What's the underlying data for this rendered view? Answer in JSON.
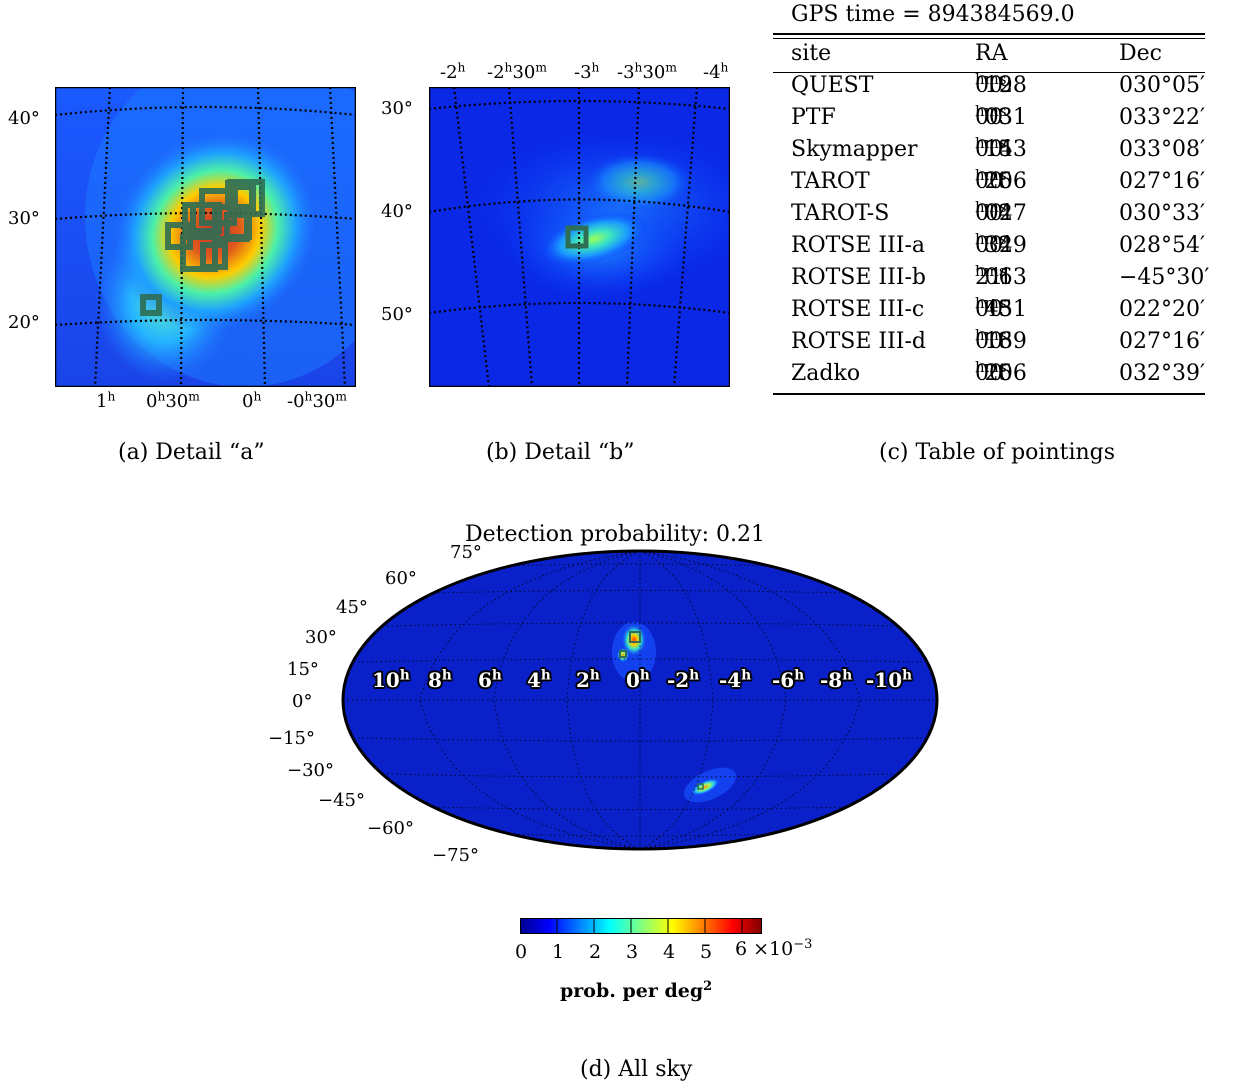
{
  "panel_a": {
    "caption": "(a) Detail “a”",
    "dec_labels": [
      "40°",
      "30°",
      "20°"
    ],
    "ra_labels": [
      "1",
      "0",
      "0",
      "-0"
    ],
    "ra_sup": [
      "h",
      "h",
      "h",
      "h"
    ],
    "ra_suffix": [
      "",
      "30",
      "",
      "30"
    ],
    "ra_suffix_sup": [
      "",
      "m",
      "",
      "m"
    ]
  },
  "panel_b": {
    "caption": "(b) Detail “b”",
    "dec_labels": [
      "30°",
      "40°",
      "50°"
    ],
    "ra_labels": [
      "-2",
      "-2",
      "-3",
      "-3",
      "-4"
    ],
    "ra_sup": [
      "h",
      "h",
      "h",
      "h",
      "h"
    ],
    "ra_suffix": [
      "",
      "30",
      "",
      "30",
      ""
    ],
    "ra_suffix_sup": [
      "",
      "m",
      "",
      "m",
      ""
    ]
  },
  "panel_c": {
    "caption": "(c) Table of pointings",
    "gps_time": "GPS time = 894384569.0",
    "headers": [
      "site",
      "RA",
      "Dec"
    ],
    "rows": [
      {
        "site": "QUEST",
        "ra": [
          "00",
          "h",
          "19",
          "m",
          "28",
          "s"
        ],
        "dec": "030°05′"
      },
      {
        "site": "PTF",
        "ra": [
          "00",
          "h",
          "03",
          "m",
          "31",
          "s"
        ],
        "dec": "033°22′"
      },
      {
        "site": "Skymapper",
        "ra": [
          "00",
          "h",
          "15",
          "m",
          "43",
          "s"
        ],
        "dec": "033°08′"
      },
      {
        "site": "TAROT",
        "ra": [
          "00",
          "h",
          "25",
          "m",
          "06",
          "s"
        ],
        "dec": "027°16′"
      },
      {
        "site": "TAROT-S",
        "ra": [
          "00",
          "h",
          "04",
          "m",
          "27",
          "s"
        ],
        "dec": "030°33′"
      },
      {
        "site": "ROTSE III-a",
        "ra": [
          "00",
          "h",
          "34",
          "m",
          "29",
          "s"
        ],
        "dec": "028°54′"
      },
      {
        "site": "ROTSE III-b",
        "ra": [
          "21",
          "h",
          "06",
          "m",
          "13",
          "s"
        ],
        "dec": "−45°30′"
      },
      {
        "site": "ROTSE III-c",
        "ra": [
          "00",
          "h",
          "43",
          "m",
          "51",
          "s"
        ],
        "dec": "022°20′"
      },
      {
        "site": "ROTSE III-d",
        "ra": [
          "00",
          "h",
          "16",
          "m",
          "39",
          "s"
        ],
        "dec": "027°16′"
      },
      {
        "site": "Zadko",
        "ra": [
          "00",
          "h",
          "25",
          "m",
          "06",
          "s"
        ],
        "dec": "032°39′"
      }
    ]
  },
  "panel_d": {
    "caption": "(d) All sky",
    "title": "Detection probability: 0.21",
    "dec_labels": [
      "75°",
      "60°",
      "45°",
      "30°",
      "15°",
      "0°",
      "−15°",
      "−30°",
      "−45°",
      "−60°",
      "−75°"
    ],
    "ra_labels": [
      "10",
      "8",
      "6",
      "4",
      "2",
      "0",
      "-2",
      "-4",
      "-6",
      "-8",
      "-10"
    ],
    "ra_sup": "h",
    "colorbar": {
      "ticks": [
        "0",
        "1",
        "2",
        "3",
        "4",
        "5",
        "6"
      ],
      "multiplier": "×10",
      "multiplier_exp": "−3",
      "label": "prob. per deg",
      "label_exp": "2"
    }
  },
  "colors": {
    "map_background": "#0000b4",
    "map_bright": "#ffaa00",
    "tile_stroke": "#2e6e55"
  }
}
